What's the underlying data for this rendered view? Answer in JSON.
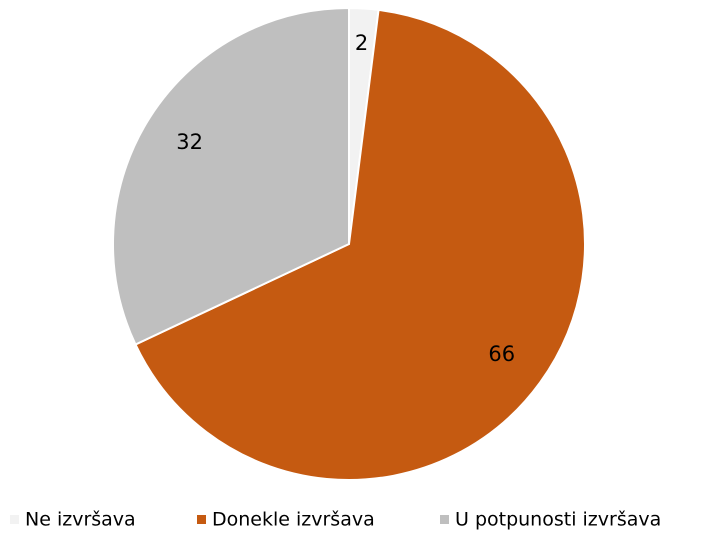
{
  "chart_data": {
    "type": "pie",
    "categories": [
      "Ne izvršava",
      "Donekle izvršava",
      "U potpunosti izvršava"
    ],
    "values": [
      2,
      66,
      32
    ],
    "colors": [
      "#f2f2f2",
      "#c55a11",
      "#bfbfbf"
    ],
    "legend": "bottom"
  }
}
